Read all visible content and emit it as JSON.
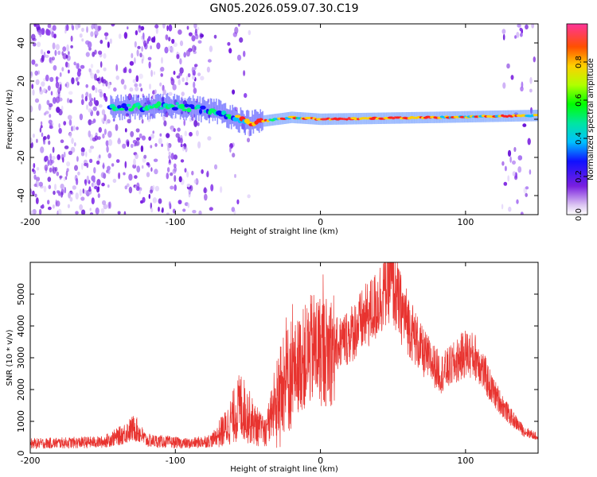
{
  "title": "GN05.2026.059.07.30.C19",
  "chart_data": [
    {
      "type": "heatmap",
      "name": "spectrogram",
      "xlabel": "Height of straight line (km)",
      "ylabel": "Frequency (Hz)",
      "xlim": [
        -200,
        150
      ],
      "ylim": [
        -50,
        50
      ],
      "xticks": [
        -200,
        -100,
        0,
        100
      ],
      "yticks": [
        -40,
        -20,
        0,
        20,
        40
      ],
      "colorbar": {
        "label": "Normalized spectral amplitude",
        "range": [
          0,
          1
        ],
        "ticks": [
          0.0,
          0.2,
          0.4,
          0.6,
          0.8
        ]
      },
      "ridge_center_hz": [
        {
          "x": -140,
          "y": 6
        },
        {
          "x": -100,
          "y": 7
        },
        {
          "x": -70,
          "y": 4
        },
        {
          "x": -50,
          "y": -2
        },
        {
          "x": -20,
          "y": 1
        },
        {
          "x": 0,
          "y": 0
        },
        {
          "x": 80,
          "y": 1
        },
        {
          "x": 150,
          "y": 2
        }
      ]
    },
    {
      "type": "line",
      "name": "snr",
      "xlabel": "Height of straight line (km)",
      "ylabel": "SNR (10 * v/v)",
      "xlim": [
        -200,
        150
      ],
      "ylim": [
        0,
        6000
      ],
      "xticks": [
        -200,
        -100,
        0,
        100
      ],
      "yticks": [
        0,
        1000,
        2000,
        3000,
        4000,
        5000
      ],
      "color": "#e8332f",
      "envelope": [
        {
          "x": -200,
          "y": 300
        },
        {
          "x": -150,
          "y": 350
        },
        {
          "x": -138,
          "y": 550
        },
        {
          "x": -128,
          "y": 800
        },
        {
          "x": -120,
          "y": 400
        },
        {
          "x": -90,
          "y": 300
        },
        {
          "x": -75,
          "y": 400
        },
        {
          "x": -65,
          "y": 800
        },
        {
          "x": -55,
          "y": 1500
        },
        {
          "x": -45,
          "y": 900
        },
        {
          "x": -38,
          "y": 600
        },
        {
          "x": -32,
          "y": 1500
        },
        {
          "x": -25,
          "y": 2200
        },
        {
          "x": -15,
          "y": 2800
        },
        {
          "x": -5,
          "y": 3300
        },
        {
          "x": 5,
          "y": 3200
        },
        {
          "x": 20,
          "y": 3700
        },
        {
          "x": 38,
          "y": 4600
        },
        {
          "x": 48,
          "y": 5500
        },
        {
          "x": 55,
          "y": 4600
        },
        {
          "x": 70,
          "y": 3200
        },
        {
          "x": 83,
          "y": 2500
        },
        {
          "x": 92,
          "y": 2800
        },
        {
          "x": 100,
          "y": 3150
        },
        {
          "x": 108,
          "y": 3000
        },
        {
          "x": 118,
          "y": 2000
        },
        {
          "x": 130,
          "y": 1200
        },
        {
          "x": 140,
          "y": 700
        },
        {
          "x": 150,
          "y": 500
        }
      ]
    }
  ]
}
